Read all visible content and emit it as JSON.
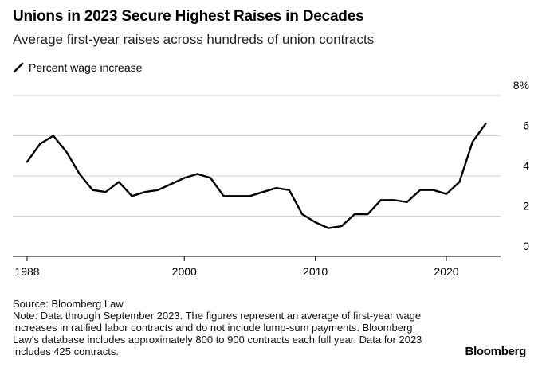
{
  "header": {
    "title": "Unions in 2023 Secure Highest Raises in Decades",
    "subtitle": "Average first-year raises across hundreds of union contracts"
  },
  "legend": {
    "label": "Percent wage increase"
  },
  "footer": {
    "source": "Source: Bloomberg Law",
    "note": "Note: Data through September 2023. The figures represent an average of first-year wage increases in ratified labor contracts and do not include lump-sum payments. Bloomberg Law's database includes approximately 800 to 900 contracts each full year. Data for 2023 includes 425 contracts.",
    "brand": "Bloomberg"
  },
  "colors": {
    "line": "#000000",
    "grid": "#d0d0d0",
    "axis": "#000000"
  },
  "chart_data": {
    "type": "line",
    "x": [
      1988,
      1989,
      1990,
      1991,
      1992,
      1993,
      1994,
      1995,
      1996,
      1997,
      1998,
      1999,
      2000,
      2001,
      2002,
      2003,
      2004,
      2005,
      2006,
      2007,
      2008,
      2009,
      2010,
      2011,
      2012,
      2013,
      2014,
      2015,
      2016,
      2017,
      2018,
      2019,
      2020,
      2021,
      2022,
      2023
    ],
    "series": [
      {
        "name": "Percent wage increase",
        "values": [
          4.7,
          5.6,
          6.0,
          5.2,
          4.1,
          3.3,
          3.2,
          3.7,
          3.0,
          3.2,
          3.3,
          3.6,
          3.9,
          4.1,
          3.9,
          3.0,
          3.0,
          3.0,
          3.2,
          3.4,
          3.3,
          2.1,
          1.7,
          1.4,
          1.5,
          2.1,
          2.1,
          2.8,
          2.8,
          2.7,
          3.3,
          3.3,
          3.1,
          3.7,
          5.7,
          6.6
        ]
      }
    ],
    "ylim": [
      0,
      8
    ],
    "yticks": [
      "0",
      "2",
      "4",
      "6",
      "8%"
    ],
    "xticks": [
      "1988",
      "2000",
      "2010",
      "2020"
    ],
    "xtick_values": [
      1988,
      2000,
      2010,
      2020
    ],
    "xlim": [
      1988,
      2025
    ],
    "grid": true,
    "legend_position": "top-left"
  }
}
